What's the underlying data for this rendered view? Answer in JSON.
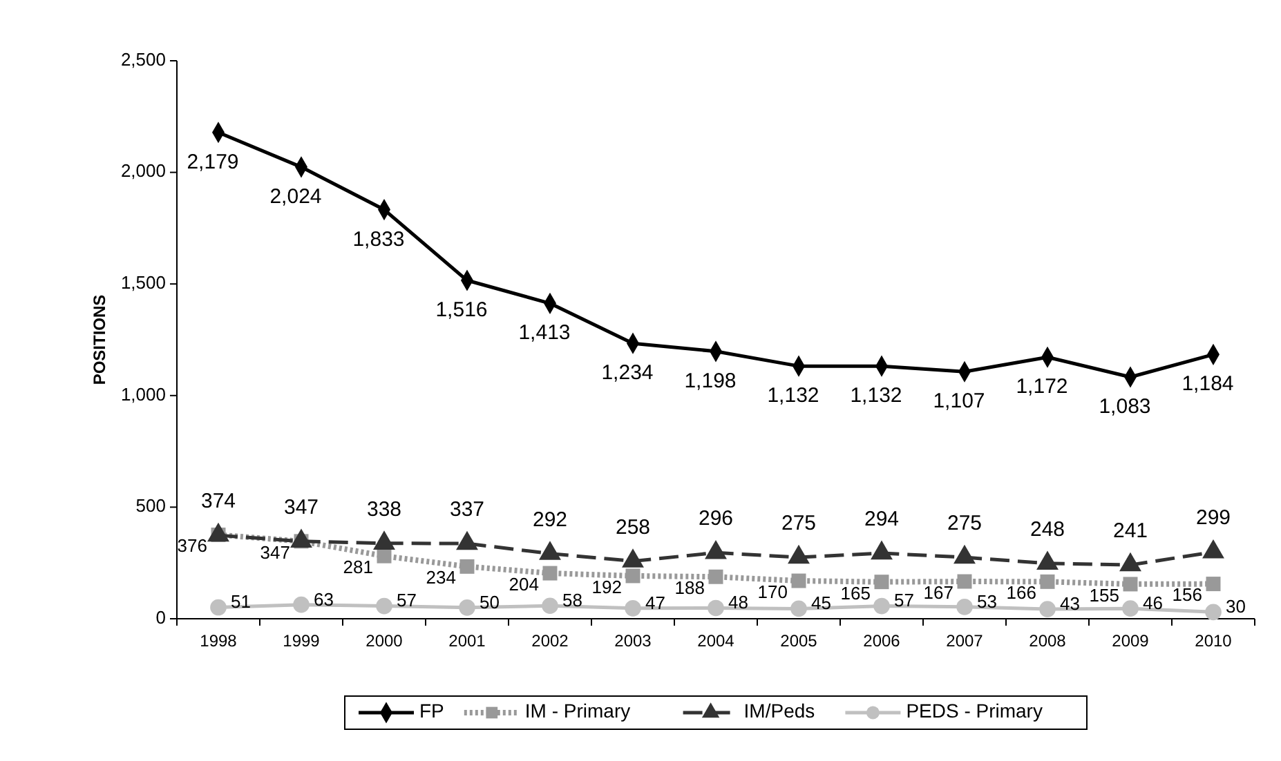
{
  "chart_data": {
    "type": "line",
    "ylabel": "POSITIONS",
    "categories": [
      "1998",
      "1999",
      "2000",
      "2001",
      "2002",
      "2003",
      "2004",
      "2005",
      "2006",
      "2007",
      "2008",
      "2009",
      "2010"
    ],
    "ylim": [
      0,
      2500
    ],
    "yticks": [
      {
        "value": 0,
        "label": "0"
      },
      {
        "value": 500,
        "label": "500"
      },
      {
        "value": 1000,
        "label": "1,000"
      },
      {
        "value": 1500,
        "label": "1,500"
      },
      {
        "value": 2000,
        "label": "2,000"
      },
      {
        "value": 2500,
        "label": "2,500"
      }
    ],
    "grid": false,
    "legend": "bottom",
    "series": [
      {
        "name": "FP",
        "color": "#000000",
        "marker": "diamond",
        "line_style": "solid",
        "values": [
          2179,
          2024,
          1833,
          1516,
          1413,
          1234,
          1198,
          1132,
          1132,
          1107,
          1172,
          1083,
          1184
        ],
        "value_labels": [
          "2,179",
          "2,024",
          "1,833",
          "1,516",
          "1,413",
          "1,234",
          "1,198",
          "1,132",
          "1,132",
          "1,107",
          "1,172",
          "1,083",
          "1,184"
        ]
      },
      {
        "name": "IM - Primary",
        "color": "#999999",
        "marker": "square",
        "line_style": "dotted",
        "values": [
          376,
          347,
          281,
          234,
          204,
          192,
          188,
          170,
          165,
          167,
          166,
          155,
          156
        ],
        "value_labels": [
          "376",
          "347",
          "281",
          "234",
          "204",
          "192",
          "188",
          "170",
          "165",
          "167",
          "166",
          "155",
          "156"
        ]
      },
      {
        "name": "IM/Peds",
        "color": "#333333",
        "marker": "triangle",
        "line_style": "dashed",
        "values": [
          374,
          347,
          338,
          337,
          292,
          258,
          296,
          275,
          294,
          275,
          248,
          241,
          299
        ],
        "value_labels": [
          "374",
          "347",
          "338",
          "337",
          "292",
          "258",
          "296",
          "275",
          "294",
          "275",
          "248",
          "241",
          "299"
        ]
      },
      {
        "name": "PEDS - Primary",
        "color": "#c0c0c0",
        "marker": "circle",
        "line_style": "solid",
        "values": [
          51,
          63,
          57,
          50,
          58,
          47,
          48,
          45,
          57,
          53,
          43,
          46,
          30
        ],
        "value_labels": [
          "51",
          "63",
          "57",
          "50",
          "58",
          "47",
          "48",
          "45",
          "57",
          "53",
          "43",
          "46",
          "30"
        ]
      }
    ]
  }
}
